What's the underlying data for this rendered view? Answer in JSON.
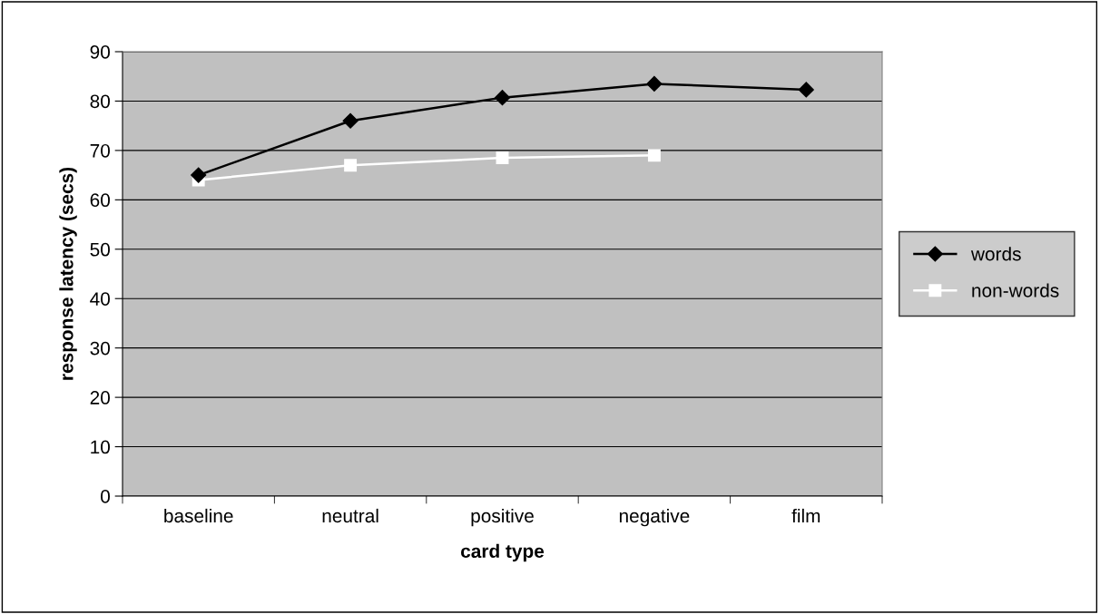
{
  "chart_data": {
    "type": "line",
    "xlabel": "card type",
    "ylabel": "response latency (secs)",
    "categories": [
      "baseline",
      "neutral",
      "positive",
      "negative",
      "film"
    ],
    "series": [
      {
        "name": "words",
        "color": "#000000",
        "marker": "diamond",
        "values": [
          65,
          76,
          80.7,
          83.5,
          82.3
        ]
      },
      {
        "name": "non-words",
        "color": "#ffffff",
        "marker": "square",
        "values": [
          64,
          67,
          68.5,
          69,
          null
        ]
      }
    ],
    "ylim": [
      0,
      90
    ],
    "yticks": [
      0,
      10,
      20,
      30,
      40,
      50,
      60,
      70,
      80,
      90
    ],
    "grid": "y",
    "legend": "right",
    "line_style": "solid"
  }
}
